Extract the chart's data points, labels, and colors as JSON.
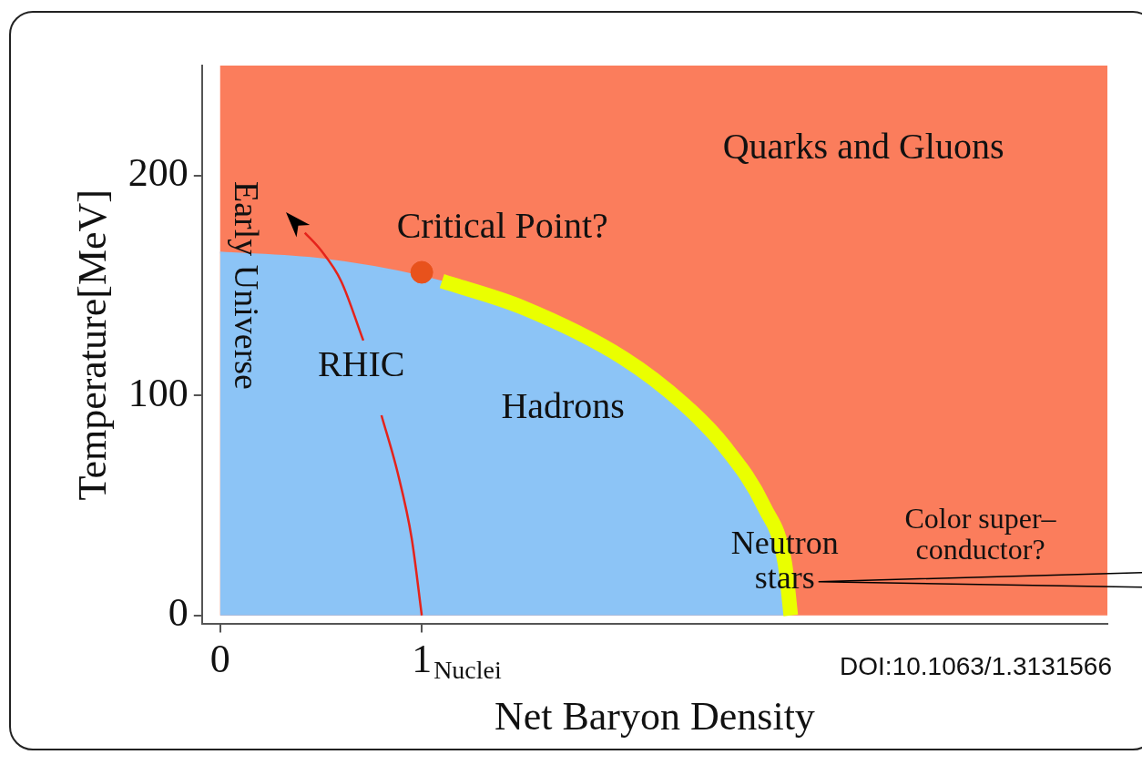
{
  "chart_data": {
    "type": "area",
    "xlabel": "Net Baryon Density",
    "ylabel": "Temperature[MeV]",
    "xlim": [
      -0.09,
      4.4
    ],
    "ylim": [
      -4,
      250
    ],
    "xticks": [
      0,
      1
    ],
    "yticks": [
      0,
      100,
      200
    ],
    "grid": false,
    "legend": false,
    "bands": [
      {
        "axis": "y",
        "from": 0,
        "to": 250,
        "color": "#fb7d5c"
      }
    ],
    "series": [
      {
        "color": "#8cc4f6",
        "x": [
          0,
          0.5,
          1,
          1.5,
          2,
          2.3,
          2.5,
          2.7,
          2.8,
          2.83
        ],
        "values": [
          165,
          162,
          154,
          140,
          117,
          96,
          77,
          49,
          24,
          0
        ]
      },
      {
        "type": "line",
        "color": "#eaff00",
        "x": [
          1.1,
          1.5,
          2,
          2.3,
          2.5,
          2.7,
          2.8,
          2.83
        ],
        "values": [
          152,
          140,
          117,
          96,
          77,
          49,
          24,
          0
        ]
      },
      {
        "type": "line",
        "color": "#e5231b",
        "x": [
          1,
          0.95,
          0.88,
          0.8,
          0.75,
          0.71,
          0.6,
          0.5,
          0.42
        ],
        "values": [
          0,
          35,
          65,
          91,
          null,
          125,
          152,
          166,
          174
        ]
      },
      {
        "type": "scatter",
        "color": "#e8521c",
        "x": [
          1
        ],
        "values": [
          156
        ]
      }
    ],
    "annotations": [
      "Early Universe",
      "Quarks and Gluons",
      "Critical Point?",
      "RHIC",
      "Hadrons",
      "Neutron\nstars",
      "Color super–\nconductor?",
      "Nuclei",
      "DOI:10.1063/1.3131566"
    ]
  }
}
